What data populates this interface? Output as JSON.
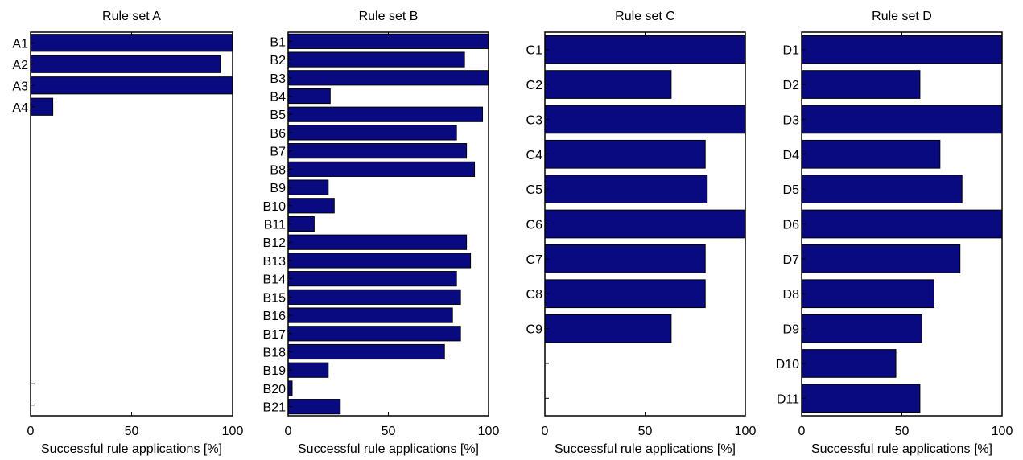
{
  "figure": {
    "bar_fill": "#0a0a80",
    "bar_stroke": "#000000",
    "axis_color": "#000000"
  },
  "chart_data": [
    {
      "type": "bar",
      "orientation": "horizontal",
      "title": "Rule set A",
      "xlabel": "Successful rule applications [%]",
      "xlim": [
        0,
        100
      ],
      "xticks": [
        "0",
        "50",
        "100"
      ],
      "slots": 18,
      "categories": [
        "A1",
        "A2",
        "A3",
        "A4"
      ],
      "values": [
        100,
        94,
        100,
        11
      ]
    },
    {
      "type": "bar",
      "orientation": "horizontal",
      "title": "Rule set B",
      "xlabel": "Successful rule applications [%]",
      "xlim": [
        0,
        100
      ],
      "xticks": [
        "0",
        "50",
        "100"
      ],
      "slots": 21,
      "categories": [
        "B1",
        "B2",
        "B3",
        "B4",
        "B5",
        "B6",
        "B7",
        "B8",
        "B9",
        "B10",
        "B11",
        "B12",
        "B13",
        "B14",
        "B15",
        "B16",
        "B17",
        "B18",
        "B19",
        "B20",
        "B21"
      ],
      "values": [
        100,
        88,
        100,
        21,
        97,
        84,
        89,
        93,
        20,
        23,
        13,
        89,
        91,
        84,
        86,
        82,
        86,
        78,
        20,
        2,
        26
      ]
    },
    {
      "type": "bar",
      "orientation": "horizontal",
      "title": "Rule set C",
      "xlabel": "Successful rule applications [%]",
      "xlim": [
        0,
        100
      ],
      "xticks": [
        "0",
        "50",
        "100"
      ],
      "slots": 11,
      "categories": [
        "C1",
        "C2",
        "C3",
        "C4",
        "C5",
        "C6",
        "C7",
        "C8",
        "C9"
      ],
      "values": [
        100,
        63,
        100,
        80,
        81,
        100,
        80,
        80,
        63
      ]
    },
    {
      "type": "bar",
      "orientation": "horizontal",
      "title": "Rule set D",
      "xlabel": "Successful rule applications [%]",
      "xlim": [
        0,
        100
      ],
      "xticks": [
        "0",
        "50",
        "100"
      ],
      "slots": 11,
      "categories": [
        "D1",
        "D2",
        "D3",
        "D4",
        "D5",
        "D6",
        "D7",
        "D8",
        "D9",
        "D10",
        "D11"
      ],
      "values": [
        100,
        59,
        100,
        69,
        80,
        100,
        79,
        66,
        60,
        47,
        59
      ]
    }
  ]
}
